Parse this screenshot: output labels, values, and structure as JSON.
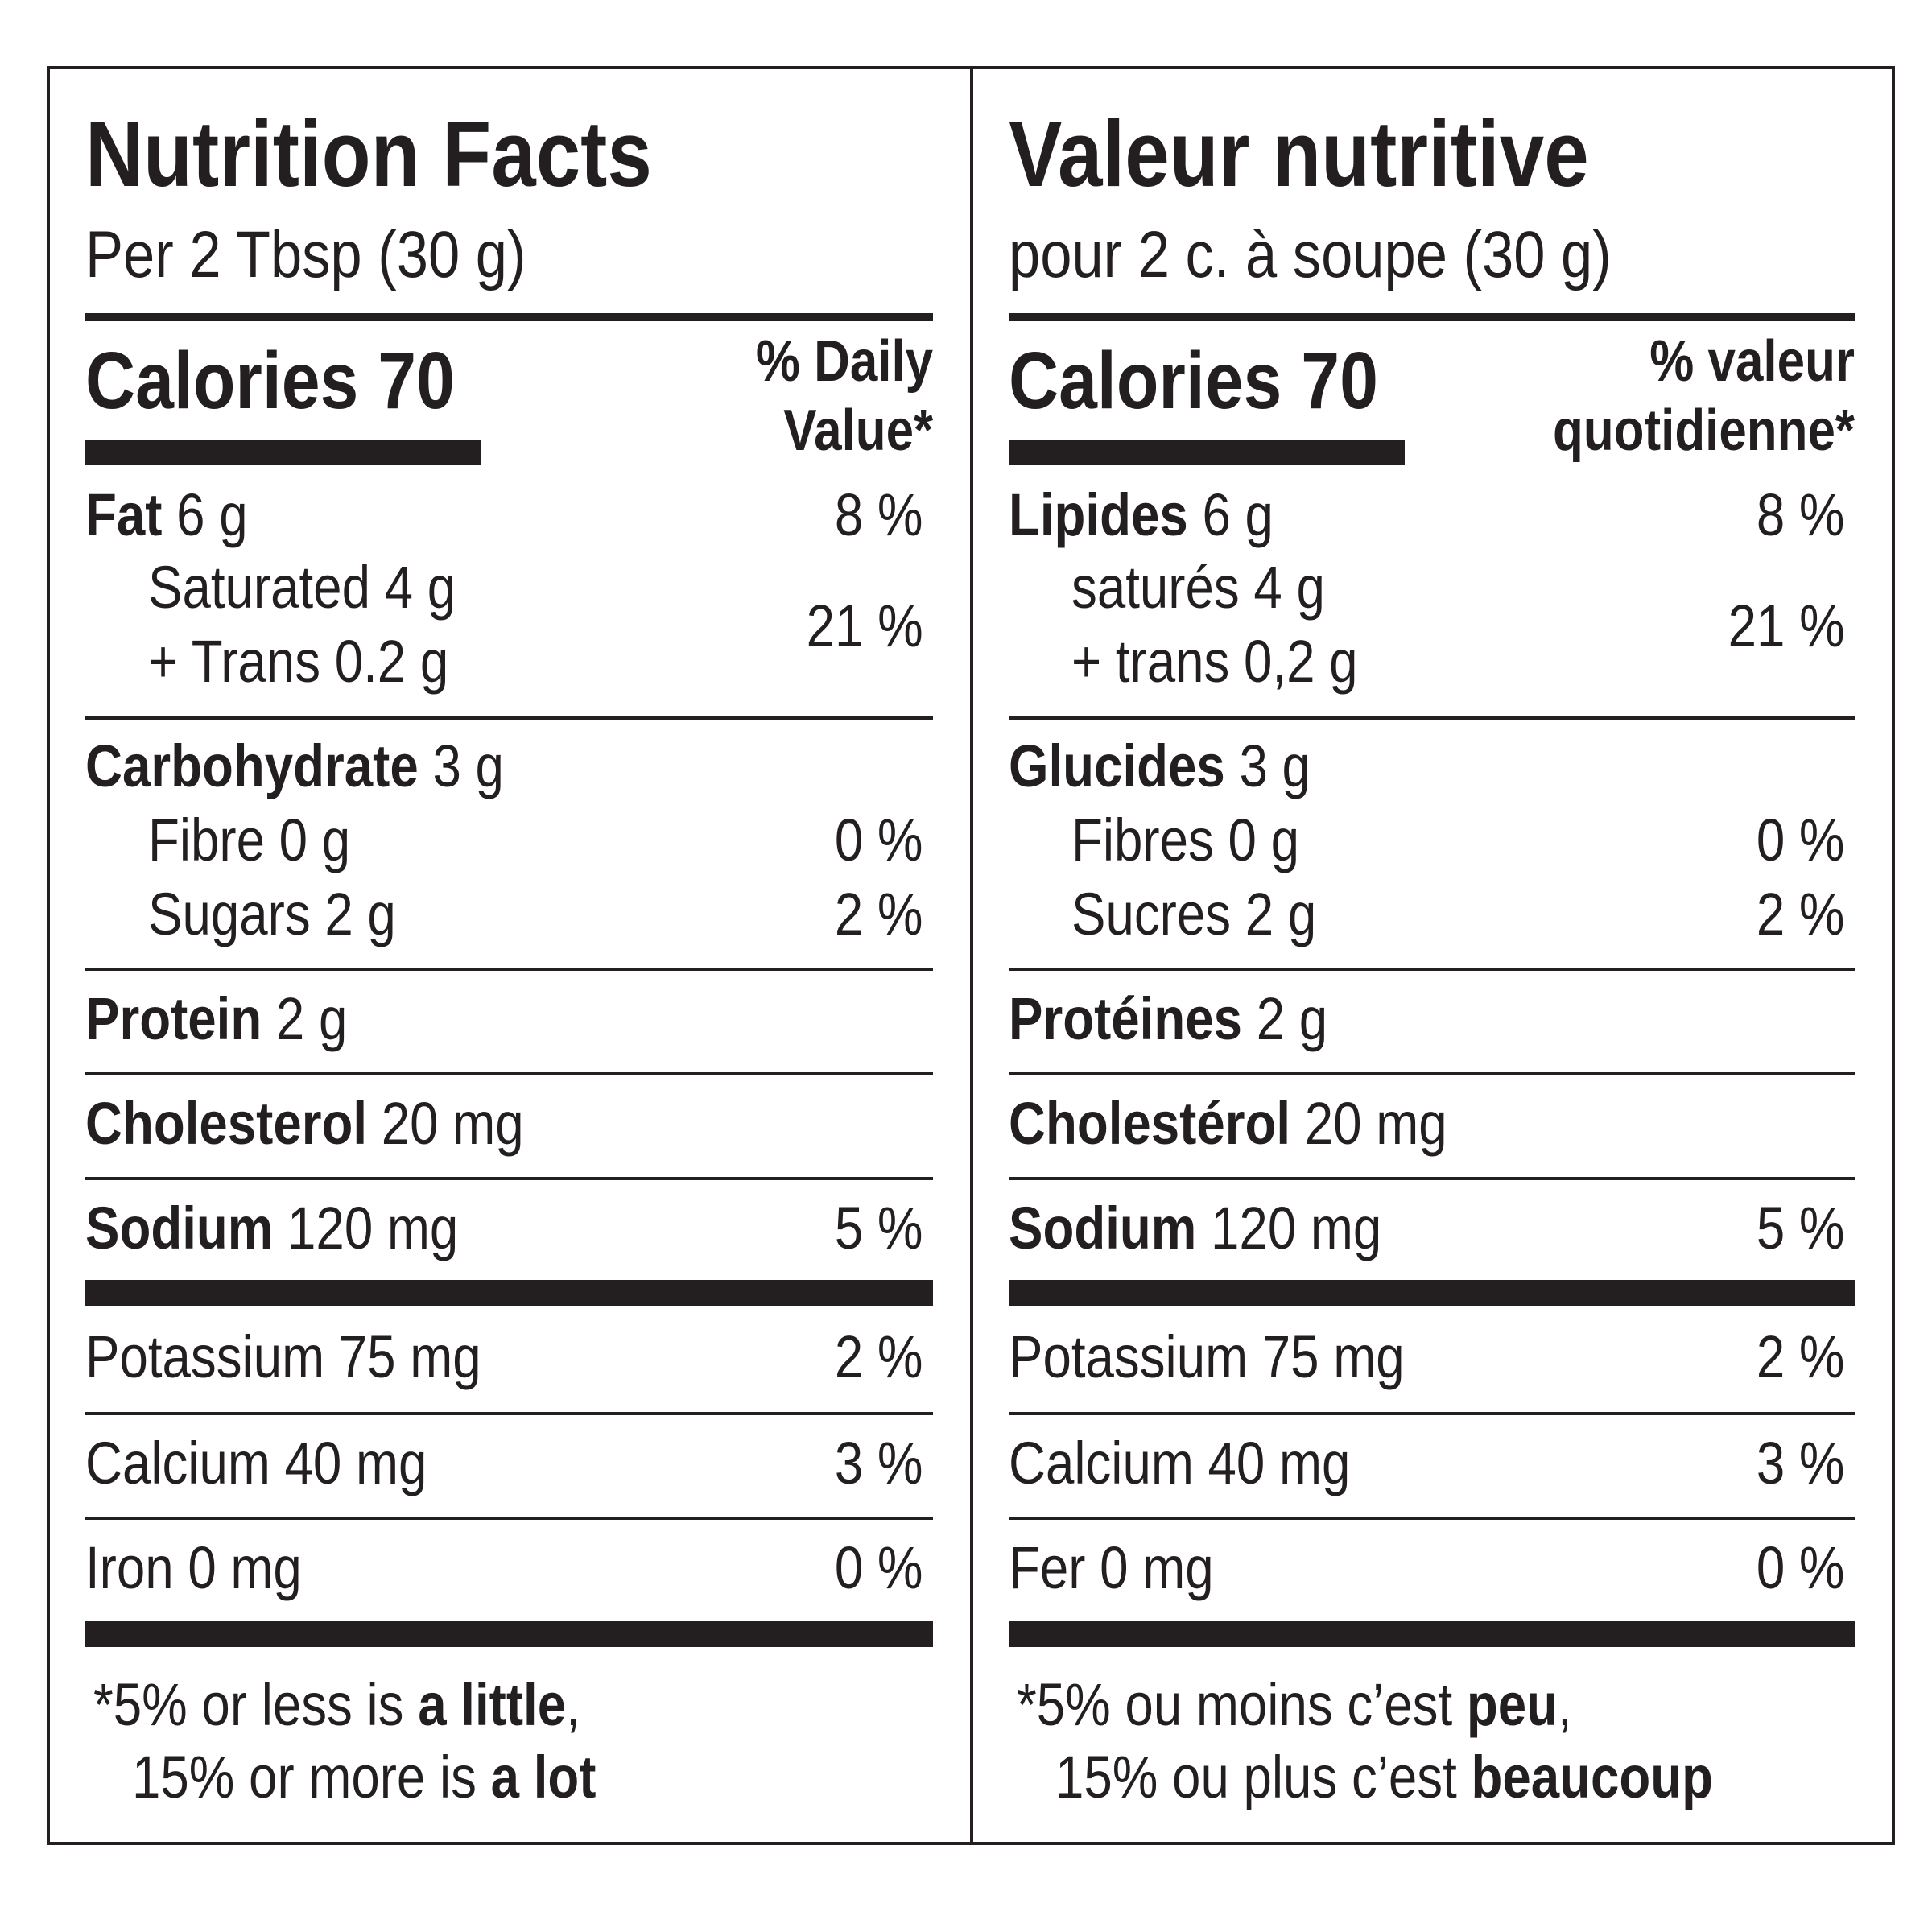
{
  "english": {
    "title": "Nutrition Facts",
    "serving": "Per 2 Tbsp (30 g)",
    "calories": "Calories 70",
    "dv_line1": "% Daily",
    "dv_line2": "Value*",
    "fat": {
      "name": "Fat",
      "amount": "6 g",
      "pct": "8 %"
    },
    "saturated": "Saturated 4 g",
    "trans": "+ Trans 0.2 g",
    "sat_trans_pct": "21 %",
    "carb": {
      "name": "Carbohydrate",
      "amount": "3 g"
    },
    "fibre": {
      "text": "Fibre 0 g",
      "pct": "0 %"
    },
    "sugars": {
      "text": "Sugars 2 g",
      "pct": "2 %"
    },
    "protein": {
      "name": "Protein",
      "amount": "2 g"
    },
    "cholesterol": {
      "name": "Cholesterol",
      "amount": "20 mg"
    },
    "sodium": {
      "name": "Sodium",
      "amount": "120 mg",
      "pct": "5 %"
    },
    "potassium": {
      "text": "Potassium 75 mg",
      "pct": "2 %"
    },
    "calcium": {
      "text": "Calcium 40 mg",
      "pct": "3 %"
    },
    "iron": {
      "text": "Iron 0 mg",
      "pct": "0 %"
    },
    "footnote": {
      "l1a": "*5% or less is ",
      "l1b": "a little",
      "l1c": ",",
      "l2a": "15% or more is ",
      "l2b": "a lot"
    }
  },
  "french": {
    "title": "Valeur nutritive",
    "serving": "pour 2 c. à soupe (30 g)",
    "calories": "Calories 70",
    "dv_line1": "% valeur",
    "dv_line2": "quotidienne*",
    "fat": {
      "name": "Lipides",
      "amount": "6 g",
      "pct": "8 %"
    },
    "saturated": "saturés 4 g",
    "trans": "+ trans 0,2 g",
    "sat_trans_pct": "21 %",
    "carb": {
      "name": "Glucides",
      "amount": "3 g"
    },
    "fibre": {
      "text": "Fibres 0 g",
      "pct": "0 %"
    },
    "sugars": {
      "text": "Sucres 2 g",
      "pct": "2 %"
    },
    "protein": {
      "name": "Protéines",
      "amount": "2 g"
    },
    "cholesterol": {
      "name": "Cholestérol",
      "amount": "20 mg"
    },
    "sodium": {
      "name": "Sodium",
      "amount": "120 mg",
      "pct": "5 %"
    },
    "potassium": {
      "text": "Potassium 75 mg",
      "pct": "2 %"
    },
    "calcium": {
      "text": "Calcium 40 mg",
      "pct": "3 %"
    },
    "iron": {
      "text": "Fer 0 mg",
      "pct": "0 %"
    },
    "footnote": {
      "l1a": "*5% ou moins c’est ",
      "l1b": "peu",
      "l1c": ",",
      "l2a": "15% ou plus c’est ",
      "l2b": "beaucoup"
    }
  }
}
